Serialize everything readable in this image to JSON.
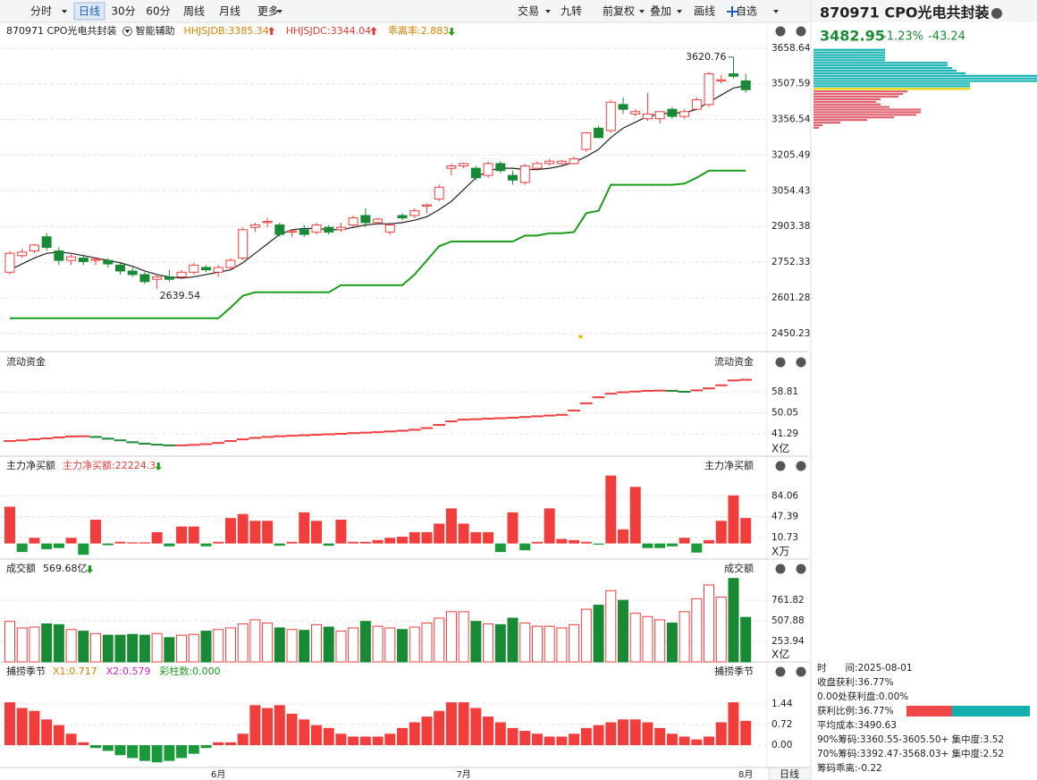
{
  "toolbar": {
    "periods": [
      "分时",
      "日线",
      "30分",
      "60分",
      "周线",
      "月线",
      "更多"
    ],
    "selected": 1,
    "tools": [
      "交易",
      "九转",
      "前复权",
      "叠加",
      "画线",
      "自选"
    ],
    "corner": "日线"
  },
  "quote": {
    "name": "870971 CPO光电共封装",
    "price": "3482.95",
    "change_pct": "-1.23%",
    "change": "-43.24"
  },
  "chip_info": {
    "lines": [
      "时　　间:2025-08-01",
      "收盘获利:36.77%",
      "0.00处获利盘:0.00%",
      "获利比例:36.77%",
      "平均成本:3490.63",
      "90%筹码:3360.55-3605.50+ 集中度:3.52",
      "70%筹码:3392.47-3568.03+ 集中度:2.52",
      "筹码乖离:-0.22"
    ],
    "profit_ratio": 36.77
  },
  "chart_data": [
    {
      "type": "candlestick",
      "title": "870971  CPO光电共封装",
      "subtitle": "智能辅助",
      "legend": [
        {
          "name": "HHJSJDB:3385.34",
          "color": "#d98200",
          "trend": "up"
        },
        {
          "name": "HHJSJDC:3344.04",
          "color": "#e03c3c",
          "trend": "up"
        },
        {
          "name": "乖离率:2.883",
          "color": "#d98200",
          "trend": "down"
        }
      ],
      "categories": [
        null,
        null,
        null,
        null,
        null,
        null,
        null,
        null,
        null,
        null,
        null,
        null,
        null,
        null,
        null,
        null,
        null,
        "6月",
        null,
        null,
        null,
        null,
        null,
        null,
        null,
        null,
        null,
        null,
        null,
        null,
        null,
        null,
        null,
        null,
        null,
        null,
        null,
        "7月",
        null,
        null,
        null,
        null,
        null,
        null,
        null,
        null,
        null,
        null,
        null,
        null,
        null,
        null,
        null,
        null,
        null,
        null,
        null,
        null,
        null,
        null,
        "8月"
      ],
      "open": [
        2710,
        2780,
        2800,
        2860,
        2800,
        2760,
        2770,
        2760,
        2760,
        2740,
        2715,
        2700,
        2680,
        2690,
        2690,
        2710,
        2730,
        2710,
        2730,
        2770,
        2900,
        2920,
        2910,
        2880,
        2890,
        2880,
        2900,
        2890,
        2910,
        2950,
        2920,
        2880,
        2950,
        2950,
        2990,
        3020,
        3150,
        3160,
        3150,
        3120,
        3170,
        3120,
        3090,
        3150,
        3170,
        3170,
        3170,
        3230,
        3320,
        3310,
        3420,
        3380,
        3360,
        3360,
        3400,
        3370,
        3400,
        3420,
        3520,
        3550,
        3520
      ],
      "high": [
        2800,
        2810,
        2830,
        2875,
        2815,
        2790,
        2785,
        2775,
        2770,
        2750,
        2730,
        2710,
        2700,
        2720,
        2720,
        2750,
        2740,
        2740,
        2770,
        2900,
        2920,
        2940,
        2920,
        2890,
        2910,
        2920,
        2910,
        2920,
        2950,
        2980,
        2940,
        2920,
        2960,
        2980,
        3000,
        3080,
        3170,
        3175,
        3160,
        3180,
        3180,
        3140,
        3170,
        3180,
        3190,
        3185,
        3200,
        3300,
        3330,
        3440,
        3450,
        3400,
        3470,
        3390,
        3410,
        3400,
        3450,
        3560,
        3545,
        3620.76,
        3550
      ],
      "low": [
        2700,
        2770,
        2790,
        2800,
        2740,
        2740,
        2740,
        2740,
        2730,
        2700,
        2690,
        2660,
        2639.54,
        2670,
        2680,
        2700,
        2710,
        2690,
        2720,
        2760,
        2880,
        2900,
        2860,
        2860,
        2860,
        2870,
        2870,
        2880,
        2900,
        2900,
        2910,
        2870,
        2930,
        2940,
        2960,
        3010,
        3120,
        3150,
        3100,
        3110,
        3130,
        3080,
        3080,
        3140,
        3160,
        3165,
        3165,
        3220,
        3280,
        3300,
        3380,
        3370,
        3350,
        3340,
        3360,
        3360,
        3400,
        3410,
        3510,
        3530,
        3470
      ],
      "close": [
        2790,
        2795,
        2825,
        2815,
        2760,
        2775,
        2755,
        2765,
        2745,
        2715,
        2700,
        2670,
        2690,
        2680,
        2710,
        2740,
        2720,
        2730,
        2760,
        2890,
        2910,
        2925,
        2870,
        2885,
        2870,
        2910,
        2880,
        2900,
        2940,
        2920,
        2935,
        2910,
        2940,
        2970,
        2995,
        3070,
        3160,
        3170,
        3110,
        3170,
        3140,
        3100,
        3160,
        3170,
        3180,
        3180,
        3190,
        3300,
        3280,
        3430,
        3400,
        3390,
        3380,
        3390,
        3370,
        3390,
        3440,
        3550,
        3525,
        3540,
        3482.95
      ],
      "series": [
        {
          "color": "#222222",
          "values": [
            2720,
            2745,
            2770,
            2790,
            2795,
            2790,
            2780,
            2770,
            2760,
            2750,
            2735,
            2715,
            2700,
            2690,
            2685,
            2690,
            2700,
            2710,
            2720,
            2750,
            2790,
            2830,
            2870,
            2890,
            2895,
            2895,
            2890,
            2890,
            2900,
            2910,
            2915,
            2915,
            2920,
            2930,
            2945,
            2975,
            3010,
            3060,
            3110,
            3140,
            3150,
            3150,
            3145,
            3145,
            3150,
            3160,
            3175,
            3200,
            3230,
            3280,
            3320,
            3345,
            3370,
            3380,
            3385,
            3385,
            3400,
            3430,
            3460,
            3490,
            3500
          ]
        },
        {
          "color": "#1a9e1a",
          "values": [
            2515,
            2515,
            2515,
            2515,
            2515,
            2515,
            2515,
            2515,
            2515,
            2515,
            2515,
            2515,
            2515,
            2515,
            2515,
            2515,
            2515,
            2515,
            2560,
            2610,
            2625,
            2625,
            2625,
            2625,
            2625,
            2625,
            2625,
            2655,
            2655,
            2655,
            2655,
            2655,
            2655,
            2700,
            2760,
            2820,
            2840,
            2840,
            2840,
            2840,
            2840,
            2840,
            2865,
            2865,
            2875,
            2875,
            2880,
            2960,
            2970,
            3080,
            3080,
            3080,
            3080,
            3080,
            3080,
            3085,
            3110,
            3140,
            3140,
            3140,
            3140
          ]
        }
      ],
      "ylim": [
        2374,
        3768
      ],
      "yticks": [
        3658.64,
        3507.59,
        3356.54,
        3205.49,
        3054.43,
        2903.38,
        2752.33,
        2601.28,
        2450.23
      ],
      "grid": true
    },
    {
      "type": "step",
      "title": "流动资金",
      "unit": "X亿",
      "ylim": [
        32,
        74.8
      ],
      "yticks": [
        58.81,
        50.05,
        41.29
      ],
      "grid": true,
      "values": [
        38.3,
        38.6,
        39,
        39.4,
        39.8,
        40.2,
        40.3,
        40,
        39.3,
        38.6,
        37.8,
        37.2,
        36.8,
        36.5,
        36.5,
        36.7,
        37,
        37.5,
        38.3,
        39,
        39.6,
        40,
        40.3,
        40.5,
        40.7,
        40.9,
        41.1,
        41.3,
        41.6,
        41.8,
        42,
        42.3,
        42.6,
        43,
        43.7,
        45,
        46.5,
        47.2,
        47.4,
        47.6,
        47.8,
        48,
        48.3,
        48.6,
        48.9,
        49.2,
        51,
        54,
        56.5,
        58,
        58.6,
        58.9,
        59.2,
        59.3,
        59.2,
        58.8,
        59.4,
        60.2,
        61.5,
        63.5,
        63.8
      ]
    },
    {
      "type": "bar",
      "title": "主力净买额",
      "legend": [
        {
          "name": "主力净买额:22224.3",
          "color": "#e03c3c",
          "trend": "down"
        }
      ],
      "unit": "X万",
      "ylim": [
        -27.5,
        152.6
      ],
      "yticks": [
        84.06,
        47.39,
        10.73
      ],
      "grid": true,
      "values": [
        65,
        -15,
        10,
        -10,
        -8,
        10,
        -20,
        42,
        -3,
        3,
        2,
        2,
        20,
        -5,
        30,
        30,
        -5,
        3,
        45,
        52,
        40,
        40,
        -4,
        3,
        55,
        40,
        -4,
        42,
        3,
        3,
        6,
        10,
        12,
        20,
        20,
        35,
        62,
        35,
        20,
        20,
        -15,
        55,
        -12,
        3,
        62,
        8,
        6,
        3,
        -2,
        120,
        25,
        100,
        -8,
        -8,
        -5,
        10,
        -16,
        6,
        40,
        85,
        45
      ]
    },
    {
      "type": "volume",
      "title": "成交额",
      "legend": [
        {
          "name": "569.68亿",
          "color": "#222222",
          "trend": "down"
        }
      ],
      "unit": "X亿",
      "ylim": [
        0,
        1258.6
      ],
      "yticks": [
        761.82,
        507.88,
        253.94
      ],
      "grid": true,
      "values": [
        500,
        420,
        430,
        470,
        460,
        400,
        380,
        350,
        330,
        330,
        340,
        330,
        350,
        300,
        330,
        340,
        380,
        400,
        420,
        470,
        520,
        480,
        420,
        400,
        390,
        460,
        430,
        380,
        420,
        500,
        440,
        420,
        400,
        430,
        480,
        540,
        620,
        620,
        500,
        470,
        460,
        540,
        480,
        440,
        440,
        420,
        460,
        650,
        700,
        880,
        760,
        600,
        560,
        520,
        480,
        620,
        780,
        950,
        800,
        1030,
        550
      ]
    },
    {
      "type": "bar",
      "title": "捕捞季节",
      "legend": [
        {
          "name": "X1:0.717",
          "color": "#d98200"
        },
        {
          "name": "X2:0.579",
          "color": "#d020d0"
        },
        {
          "name": "彩柱数:0.000",
          "color": "#1a9e1a"
        }
      ],
      "ylim": [
        -0.78,
        2.88
      ],
      "yticks": [
        1.44,
        0.72,
        {
          "value": 0,
          "label": "0.00"
        }
      ],
      "grid": true,
      "values": [
        1.5,
        1.3,
        1.2,
        0.9,
        0.7,
        0.4,
        0.1,
        -0.1,
        -0.2,
        -0.35,
        -0.45,
        -0.55,
        -0.6,
        -0.55,
        -0.45,
        -0.3,
        -0.1,
        0.1,
        0.1,
        0.4,
        1.4,
        1.3,
        1.4,
        1.1,
        0.9,
        0.7,
        0.6,
        0.4,
        0.3,
        0.3,
        0.3,
        0.4,
        0.6,
        0.8,
        1.0,
        1.2,
        1.5,
        1.5,
        1.3,
        1.0,
        0.8,
        0.6,
        0.5,
        0.4,
        0.3,
        0.3,
        0.4,
        0.6,
        0.7,
        0.8,
        0.9,
        0.9,
        0.8,
        0.6,
        0.4,
        0.3,
        0.2,
        0.3,
        0.8,
        1.5,
        0.85
      ]
    },
    {
      "type": "chip",
      "y": [
        3650,
        3639,
        3628,
        3617,
        3606,
        3595,
        3584,
        3573,
        3562,
        3551,
        3540,
        3529,
        3518,
        3507,
        3496,
        3485,
        3474,
        3463,
        3452,
        3441,
        3430,
        3419,
        3408,
        3397,
        3386,
        3375,
        3364,
        3353,
        3342,
        3331,
        3320
      ],
      "values": [
        80,
        80,
        80,
        80,
        80,
        150,
        150,
        155,
        160,
        170,
        250,
        250,
        250,
        175,
        175,
        175,
        105,
        100,
        95,
        75,
        70,
        75,
        85,
        120,
        120,
        115,
        90,
        60,
        30,
        10,
        6
      ]
    }
  ]
}
